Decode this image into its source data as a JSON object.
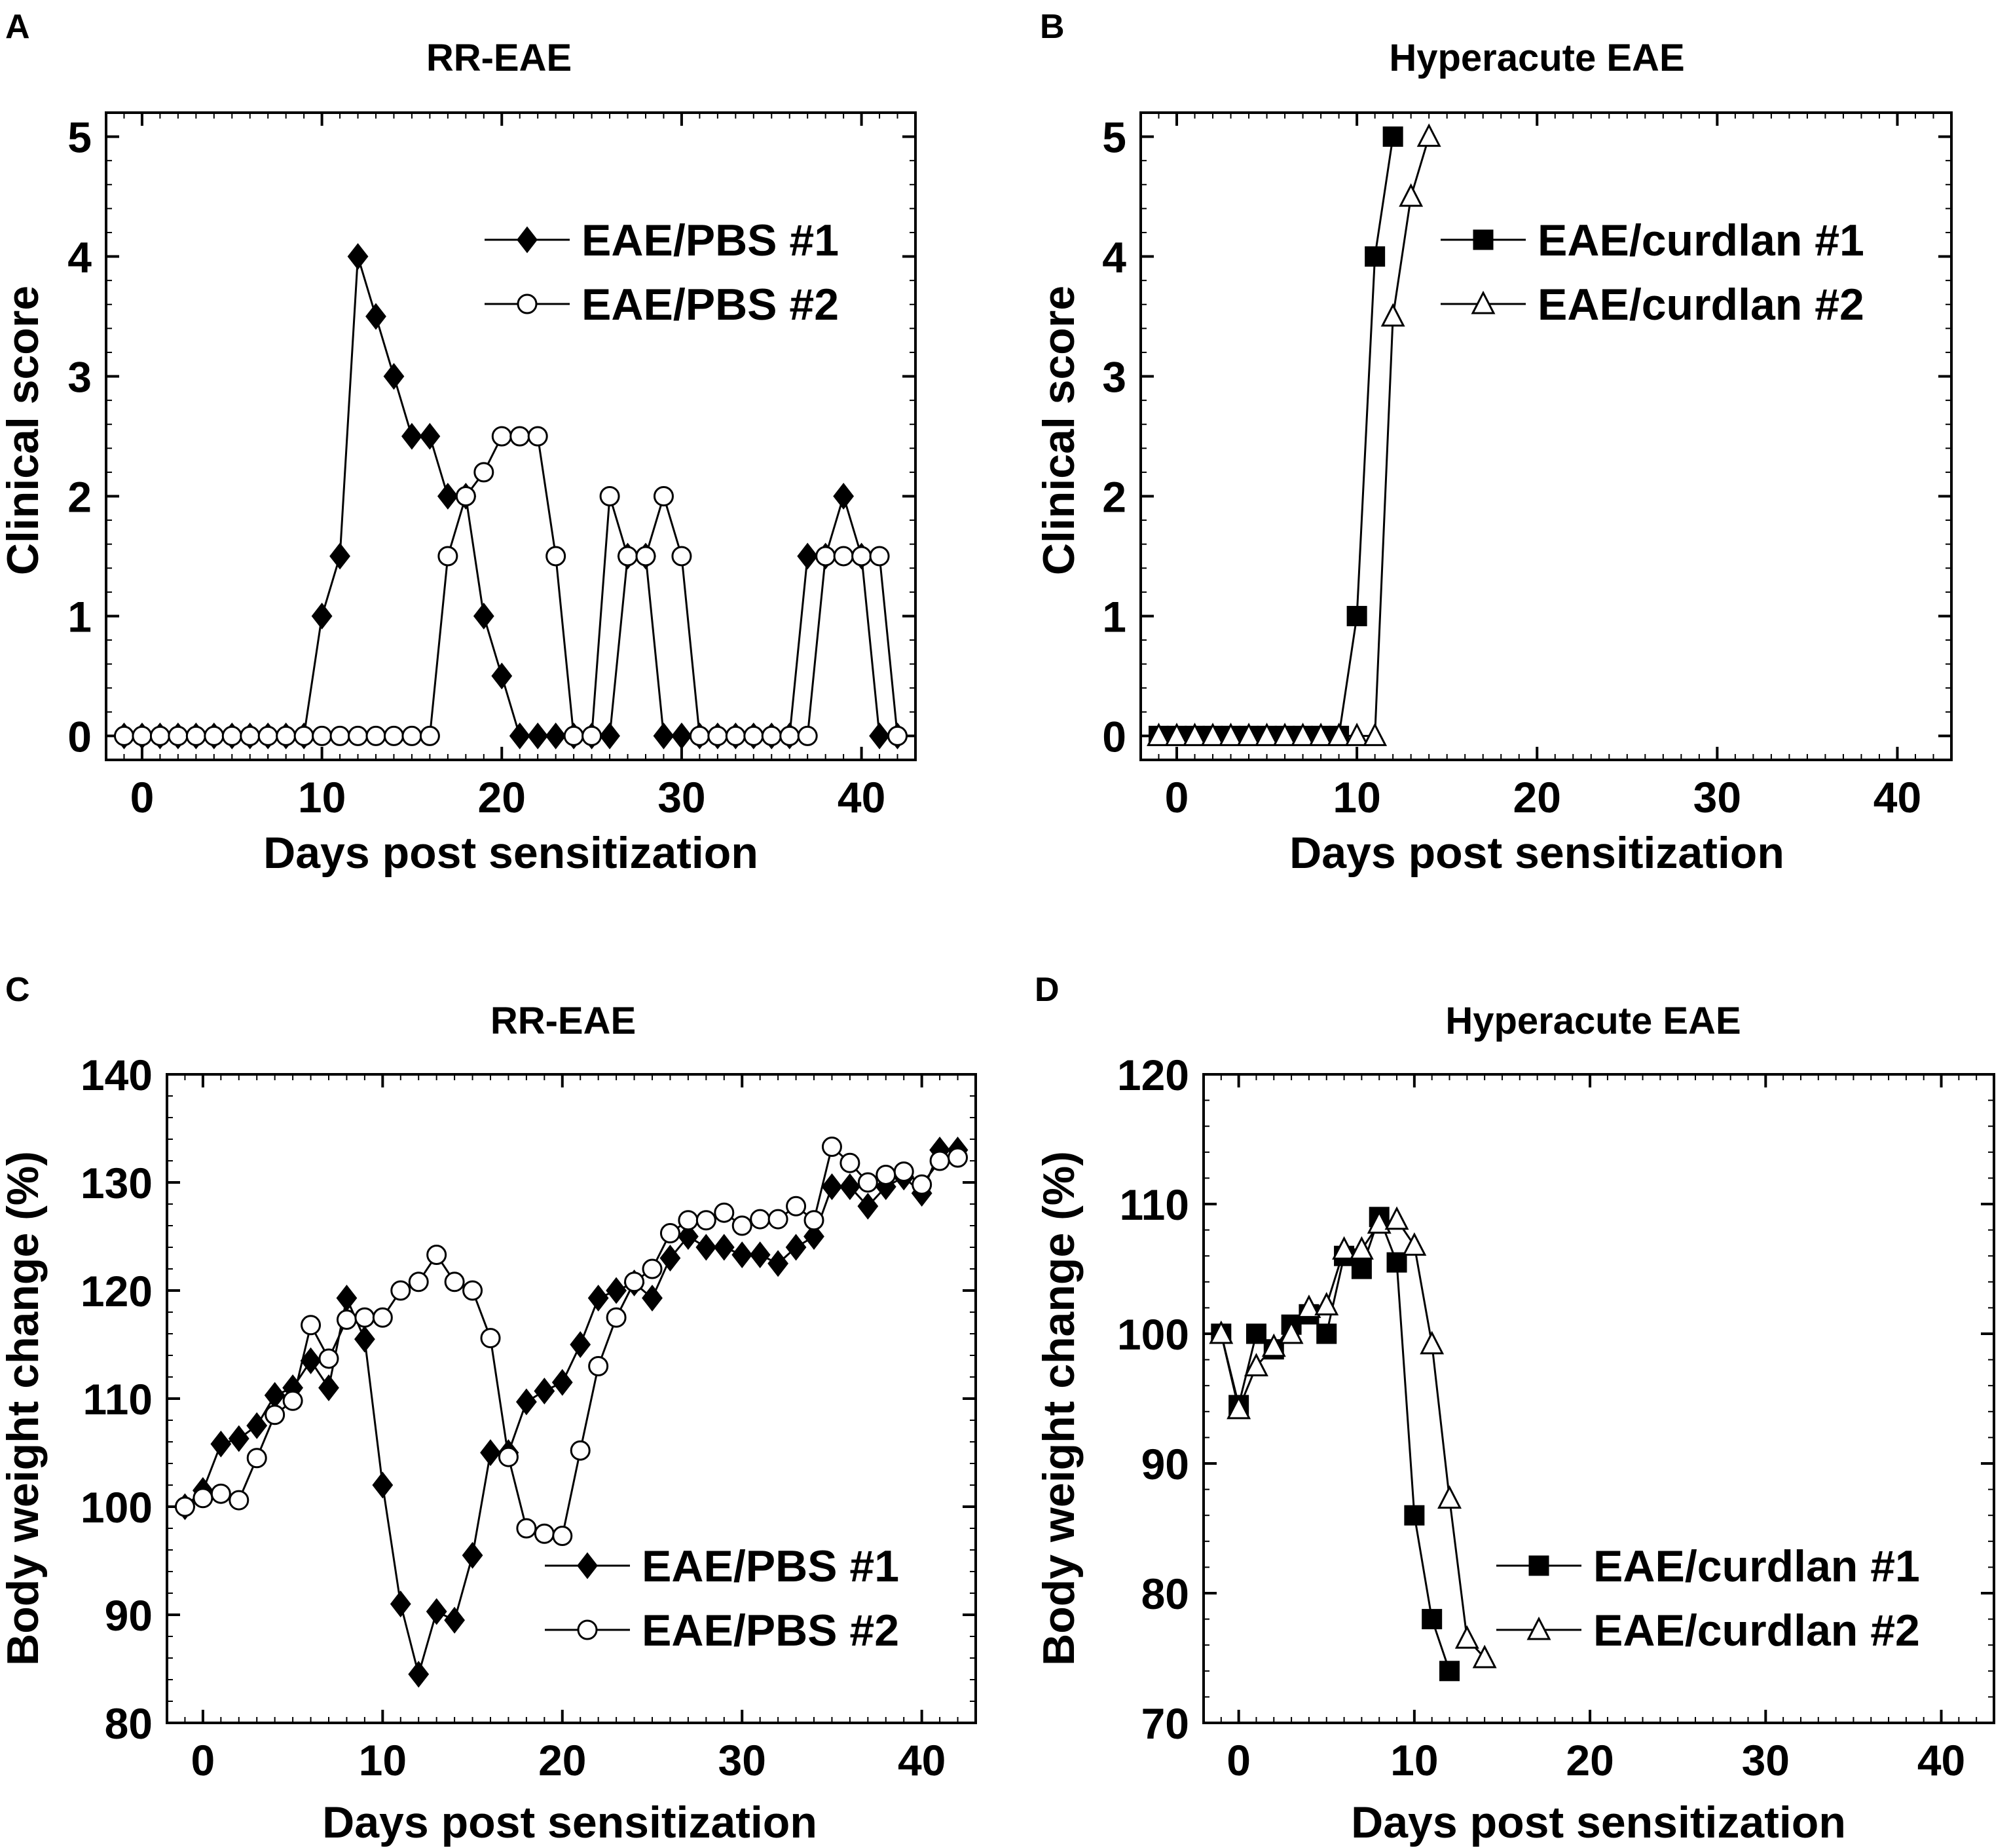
{
  "chart_data": [
    {
      "panel_label": "A",
      "type": "line",
      "title": "RR-EAE",
      "xlabel": "Days post sensitization",
      "ylabel": "Clinical score",
      "xlim": [
        -2,
        43
      ],
      "ylim": [
        -0.2,
        5.2
      ],
      "xticks": [
        0,
        10,
        20,
        30,
        40
      ],
      "yticks": [
        0,
        1,
        2,
        3,
        4,
        5
      ],
      "legend_position": "top-right",
      "series": [
        {
          "name": "EAE/PBS #1",
          "marker": "diamond",
          "fill": "#000000",
          "x": [
            -1,
            0,
            1,
            2,
            3,
            4,
            5,
            6,
            7,
            8,
            9,
            10,
            11,
            12,
            13,
            14,
            15,
            16,
            17,
            18,
            19,
            20,
            21,
            22,
            23,
            24,
            25,
            26,
            27,
            28,
            29,
            30,
            31,
            32,
            33,
            34,
            35,
            36,
            37,
            38,
            39,
            40,
            41,
            42
          ],
          "y": [
            0,
            0,
            0,
            0,
            0,
            0,
            0,
            0,
            0,
            0,
            0,
            1,
            1.5,
            4,
            3.5,
            3,
            2.5,
            2.5,
            2,
            2,
            1,
            0.5,
            0,
            0,
            0,
            0,
            0,
            0,
            1.5,
            1.5,
            0,
            0,
            0,
            0,
            0,
            0,
            0,
            0,
            1.5,
            1.5,
            2,
            1.5,
            0,
            0
          ]
        },
        {
          "name": "EAE/PBS #2",
          "marker": "circle",
          "fill": "#ffffff",
          "x": [
            -1,
            0,
            1,
            2,
            3,
            4,
            5,
            6,
            7,
            8,
            9,
            10,
            11,
            12,
            13,
            14,
            15,
            16,
            17,
            18,
            19,
            20,
            21,
            22,
            23,
            24,
            25,
            26,
            27,
            28,
            29,
            30,
            31,
            32,
            33,
            34,
            35,
            36,
            37,
            38,
            39,
            40,
            41,
            42
          ],
          "y": [
            0,
            0,
            0,
            0,
            0,
            0,
            0,
            0,
            0,
            0,
            0,
            0,
            0,
            0,
            0,
            0,
            0,
            0,
            1.5,
            2,
            2.2,
            2.5,
            2.5,
            2.5,
            1.5,
            0,
            0,
            2,
            1.5,
            1.5,
            2,
            1.5,
            0,
            0,
            0,
            0,
            0,
            0,
            0,
            1.5,
            1.5,
            1.5,
            1.5,
            0
          ]
        }
      ]
    },
    {
      "panel_label": "B",
      "type": "line",
      "title": "Hyperacute EAE",
      "xlabel": "Days post sensitization",
      "ylabel": "Clinical score",
      "xlim": [
        -2,
        43
      ],
      "ylim": [
        -0.2,
        5.2
      ],
      "xticks": [
        0,
        10,
        20,
        30,
        40
      ],
      "yticks": [
        0,
        1,
        2,
        3,
        4,
        5
      ],
      "legend_position": "top-right",
      "series": [
        {
          "name": "EAE/curdlan #1",
          "marker": "square",
          "fill": "#000000",
          "x": [
            -1,
            0,
            1,
            2,
            3,
            4,
            5,
            6,
            7,
            8,
            9,
            10,
            11,
            12
          ],
          "y": [
            0,
            0,
            0,
            0,
            0,
            0,
            0,
            0,
            0,
            0,
            0,
            1,
            4,
            5
          ]
        },
        {
          "name": "EAE/curdlan #2",
          "marker": "triangle",
          "fill": "#ffffff",
          "x": [
            -1,
            0,
            1,
            2,
            3,
            4,
            5,
            6,
            7,
            8,
            9,
            10,
            11,
            12,
            13,
            14
          ],
          "y": [
            0,
            0,
            0,
            0,
            0,
            0,
            0,
            0,
            0,
            0,
            0,
            0,
            0,
            3.5,
            4.5,
            5
          ]
        }
      ]
    },
    {
      "panel_label": "C",
      "type": "line",
      "title": "RR-EAE",
      "xlabel": "Days post sensitization",
      "ylabel": "Body weight change (%)",
      "xlim": [
        -2,
        43
      ],
      "ylim": [
        80,
        140
      ],
      "xticks": [
        0,
        10,
        20,
        30,
        40
      ],
      "yticks": [
        80,
        90,
        100,
        110,
        120,
        130,
        140
      ],
      "legend_position": "bottom-right",
      "series": [
        {
          "name": "EAE/PBS #1",
          "marker": "diamond",
          "fill": "#000000",
          "x": [
            -1,
            0,
            1,
            2,
            3,
            4,
            5,
            6,
            7,
            8,
            9,
            10,
            11,
            12,
            13,
            14,
            15,
            16,
            17,
            18,
            19,
            20,
            21,
            22,
            23,
            24,
            25,
            26,
            27,
            28,
            29,
            30,
            31,
            32,
            33,
            34,
            35,
            36,
            37,
            38,
            39,
            40,
            41,
            42
          ],
          "y": [
            100,
            101.5,
            105.8,
            106.3,
            107.5,
            110.3,
            111,
            113.5,
            111,
            119.3,
            115.5,
            102,
            91,
            84.5,
            90.3,
            89.5,
            95.5,
            105,
            105,
            109.7,
            110.7,
            111.5,
            115,
            119.3,
            120,
            120.7,
            119.3,
            123,
            125,
            124,
            124,
            123.3,
            123.3,
            122.5,
            124,
            125,
            129.6,
            129.6,
            127.8,
            129.6,
            130.5,
            129,
            133,
            133
          ]
        },
        {
          "name": "EAE/PBS #2",
          "marker": "circle",
          "fill": "#ffffff",
          "x": [
            -1,
            0,
            1,
            2,
            3,
            4,
            5,
            6,
            7,
            8,
            9,
            10,
            11,
            12,
            13,
            14,
            15,
            16,
            17,
            18,
            19,
            20,
            21,
            22,
            23,
            24,
            25,
            26,
            27,
            28,
            29,
            30,
            31,
            32,
            33,
            34,
            35,
            36,
            37,
            38,
            39,
            40,
            41,
            42
          ],
          "y": [
            100,
            100.8,
            101.2,
            100.6,
            104.5,
            108.5,
            109.8,
            116.8,
            113.7,
            117.3,
            117.5,
            117.5,
            120,
            120.8,
            123.3,
            120.8,
            120,
            115.6,
            104.6,
            98,
            97.5,
            97.3,
            105.2,
            113,
            117.5,
            120.8,
            122,
            125.3,
            126.5,
            126.5,
            127.2,
            126,
            126.6,
            126.6,
            127.8,
            126.5,
            133.3,
            131.8,
            130,
            130.7,
            131,
            129.8,
            132,
            132.3
          ]
        }
      ]
    },
    {
      "panel_label": "D",
      "type": "line",
      "title": "Hyperacute EAE",
      "xlabel": "Days post sensitization",
      "ylabel": "Body weight change (%)",
      "xlim": [
        -2,
        43
      ],
      "ylim": [
        70,
        120
      ],
      "xticks": [
        0,
        10,
        20,
        30,
        40
      ],
      "yticks": [
        70,
        80,
        90,
        100,
        110,
        120
      ],
      "legend_position": "bottom-right",
      "series": [
        {
          "name": "EAE/curdlan #1",
          "marker": "square",
          "fill": "#000000",
          "x": [
            -1,
            0,
            1,
            2,
            3,
            4,
            5,
            6,
            7,
            8,
            9,
            10,
            11,
            12
          ],
          "y": [
            100,
            94.5,
            100,
            98.8,
            100.7,
            101.5,
            100,
            106,
            105,
            109,
            105.5,
            86,
            78,
            74
          ]
        },
        {
          "name": "EAE/curdlan #2",
          "marker": "triangle",
          "fill": "#ffffff",
          "x": [
            -1,
            0,
            1,
            2,
            3,
            4,
            5,
            6,
            7,
            8,
            9,
            10,
            11,
            12,
            13,
            14
          ],
          "y": [
            100,
            94.2,
            97.5,
            99,
            100,
            102,
            102.2,
            106.5,
            106.5,
            108.5,
            108.8,
            106.8,
            99.2,
            87.3,
            76.5,
            75
          ]
        }
      ]
    }
  ]
}
